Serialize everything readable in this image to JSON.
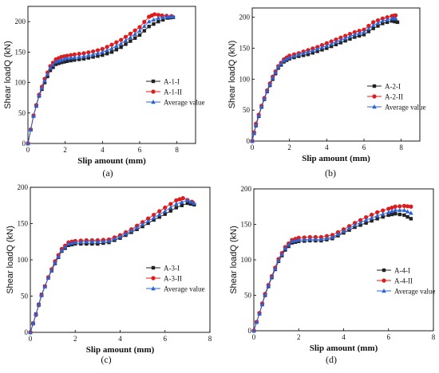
{
  "colors": {
    "series1": "#222222",
    "series2": "#e11a1a",
    "series3": "#2a63d6",
    "axis": "#000000"
  },
  "chart_data": [
    {
      "type": "line",
      "panel_label": "(a)",
      "xlabel": "Slip amount (mm)",
      "ylabel": "Shear loadQ (kN)",
      "xlim": [
        0,
        9
      ],
      "ylim": [
        0,
        225
      ],
      "xticks": [
        0,
        2,
        4,
        6,
        8
      ],
      "yticks": [
        0,
        50,
        100,
        150,
        200
      ],
      "legend_position": "center-right",
      "series": [
        {
          "name": "A-1-I",
          "marker": "square",
          "x": [
            0,
            0.3,
            0.6,
            0.9,
            1.2,
            1.5,
            1.8,
            2.1,
            2.5,
            3.0,
            3.5,
            4.0,
            4.5,
            5.0,
            5.5,
            6.0,
            6.5,
            7.0,
            7.5,
            7.8
          ],
          "y": [
            0,
            45,
            78,
            100,
            120,
            130,
            133,
            135,
            137,
            139,
            142,
            145,
            150,
            158,
            168,
            178,
            192,
            200,
            206,
            207
          ]
        },
        {
          "name": "A-1-II",
          "marker": "circle",
          "x": [
            0,
            0.3,
            0.6,
            0.9,
            1.2,
            1.5,
            1.8,
            2.1,
            2.5,
            3.0,
            3.5,
            4.0,
            4.5,
            5.0,
            5.5,
            6.0,
            6.5,
            6.8,
            7.2,
            7.7
          ],
          "y": [
            0,
            46,
            80,
            106,
            127,
            138,
            142,
            144,
            146,
            148,
            151,
            155,
            162,
            170,
            180,
            191,
            208,
            212,
            210,
            209
          ]
        },
        {
          "name": "Average value",
          "marker": "triangle",
          "x": [
            0,
            0.3,
            0.6,
            0.9,
            1.2,
            1.5,
            1.8,
            2.1,
            2.5,
            3.0,
            3.5,
            4.0,
            4.5,
            5.0,
            5.5,
            6.0,
            6.5,
            7.0,
            7.5,
            7.8
          ],
          "y": [
            0,
            45,
            79,
            103,
            124,
            134,
            137,
            140,
            141,
            143,
            146,
            150,
            156,
            164,
            174,
            185,
            200,
            206,
            208,
            208
          ]
        }
      ]
    },
    {
      "type": "line",
      "panel_label": "(b)",
      "xlabel": "Slip amount (mm)",
      "ylabel": "Shear loadQ (kN)",
      "xlim": [
        0,
        9
      ],
      "ylim": [
        0,
        215
      ],
      "xticks": [
        0,
        2,
        4,
        6,
        8
      ],
      "yticks": [
        0,
        50,
        100,
        150,
        200
      ],
      "legend_position": "center-right",
      "series": [
        {
          "name": "A-2-I",
          "marker": "square",
          "x": [
            0,
            0.2,
            0.5,
            0.8,
            1.1,
            1.4,
            1.7,
            2.0,
            2.5,
            3.0,
            3.5,
            4.0,
            4.5,
            5.0,
            5.5,
            6.0,
            6.5,
            7.0,
            7.5,
            7.8
          ],
          "y": [
            0,
            25,
            55,
            80,
            100,
            118,
            128,
            133,
            137,
            140,
            145,
            150,
            156,
            162,
            168,
            172,
            182,
            190,
            194,
            192
          ]
        },
        {
          "name": "A-2-II",
          "marker": "circle",
          "x": [
            0,
            0.2,
            0.5,
            0.8,
            1.1,
            1.4,
            1.7,
            2.0,
            2.5,
            3.0,
            3.5,
            4.0,
            4.5,
            5.0,
            5.5,
            6.0,
            6.5,
            7.0,
            7.5,
            7.7
          ],
          "y": [
            0,
            28,
            57,
            82,
            104,
            121,
            132,
            138,
            142,
            147,
            152,
            158,
            164,
            170,
            176,
            180,
            192,
            198,
            202,
            203
          ]
        },
        {
          "name": "Average value",
          "marker": "triangle",
          "x": [
            0,
            0.2,
            0.5,
            0.8,
            1.1,
            1.4,
            1.7,
            2.0,
            2.5,
            3.0,
            3.5,
            4.0,
            4.5,
            5.0,
            5.5,
            6.0,
            6.5,
            7.0,
            7.5,
            7.7
          ],
          "y": [
            0,
            26,
            56,
            81,
            102,
            120,
            130,
            135,
            140,
            144,
            149,
            154,
            160,
            166,
            172,
            176,
            187,
            194,
            198,
            198
          ]
        }
      ]
    },
    {
      "type": "line",
      "panel_label": "(c)",
      "xlabel": "Slip amount (mm)",
      "ylabel": "Shear loadQ (kN)",
      "xlim": [
        0,
        8
      ],
      "ylim": [
        0,
        200
      ],
      "xticks": [
        0,
        2,
        4,
        6,
        8
      ],
      "yticks": [
        0,
        50,
        100,
        150,
        200
      ],
      "legend_position": "center-right",
      "series": [
        {
          "name": "A-3-I",
          "marker": "square",
          "x": [
            0,
            0.25,
            0.5,
            0.8,
            1.1,
            1.4,
            1.7,
            2.0,
            2.5,
            3.0,
            3.5,
            4.0,
            4.5,
            5.0,
            5.5,
            6.0,
            6.5,
            7.0,
            7.3
          ],
          "y": [
            0,
            25,
            52,
            75,
            95,
            112,
            120,
            122,
            122,
            122,
            124,
            130,
            138,
            146,
            155,
            163,
            172,
            178,
            176
          ]
        },
        {
          "name": "A-3-II",
          "marker": "circle",
          "x": [
            0,
            0.25,
            0.5,
            0.8,
            1.1,
            1.4,
            1.7,
            2.0,
            2.5,
            3.0,
            3.5,
            4.0,
            4.5,
            5.0,
            5.5,
            6.0,
            6.5,
            6.8,
            7.2
          ],
          "y": [
            0,
            24,
            51,
            76,
            98,
            115,
            124,
            126,
            127,
            127,
            128,
            134,
            142,
            152,
            162,
            172,
            182,
            185,
            180
          ]
        },
        {
          "name": "Average value",
          "marker": "triangle",
          "x": [
            0,
            0.25,
            0.5,
            0.8,
            1.1,
            1.4,
            1.7,
            2.0,
            2.5,
            3.0,
            3.5,
            4.0,
            4.5,
            5.0,
            5.5,
            6.0,
            6.5,
            7.0,
            7.3
          ],
          "y": [
            0,
            25,
            51,
            75,
            96,
            113,
            122,
            124,
            125,
            125,
            126,
            132,
            140,
            149,
            158,
            167,
            177,
            182,
            178
          ]
        }
      ]
    },
    {
      "type": "line",
      "panel_label": "(d)",
      "xlabel": "Slip amount (mm)",
      "ylabel": "Shear loadQ (kN)",
      "xlim": [
        0,
        8
      ],
      "ylim": [
        0,
        200
      ],
      "xticks": [
        0,
        2,
        4,
        6,
        8
      ],
      "yticks": [
        0,
        50,
        100,
        150,
        200
      ],
      "legend_position": "center-right",
      "series": [
        {
          "name": "A-4-I",
          "marker": "square",
          "x": [
            0,
            0.25,
            0.5,
            0.8,
            1.1,
            1.4,
            1.7,
            2.0,
            2.5,
            3.0,
            3.5,
            4.0,
            4.5,
            5.0,
            5.5,
            6.0,
            6.3,
            6.7,
            7.0
          ],
          "y": [
            0,
            24,
            50,
            75,
            98,
            114,
            124,
            126,
            127,
            127,
            130,
            138,
            146,
            152,
            158,
            163,
            165,
            163,
            158
          ]
        },
        {
          "name": "A-4-II",
          "marker": "circle",
          "x": [
            0,
            0.25,
            0.5,
            0.8,
            1.1,
            1.4,
            1.7,
            2.0,
            2.5,
            3.0,
            3.5,
            4.0,
            4.5,
            5.0,
            5.5,
            6.0,
            6.3,
            6.7,
            7.0
          ],
          "y": [
            0,
            25,
            52,
            77,
            101,
            118,
            128,
            131,
            132,
            132,
            135,
            143,
            152,
            160,
            167,
            172,
            175,
            176,
            175
          ]
        },
        {
          "name": "Average value",
          "marker": "triangle",
          "x": [
            0,
            0.25,
            0.5,
            0.8,
            1.1,
            1.4,
            1.7,
            2.0,
            2.5,
            3.0,
            3.5,
            4.0,
            4.5,
            5.0,
            5.5,
            6.0,
            6.3,
            6.7,
            7.0
          ],
          "y": [
            0,
            24,
            51,
            76,
            99,
            116,
            126,
            128,
            129,
            129,
            132,
            140,
            149,
            156,
            162,
            167,
            170,
            170,
            166
          ]
        }
      ]
    }
  ]
}
